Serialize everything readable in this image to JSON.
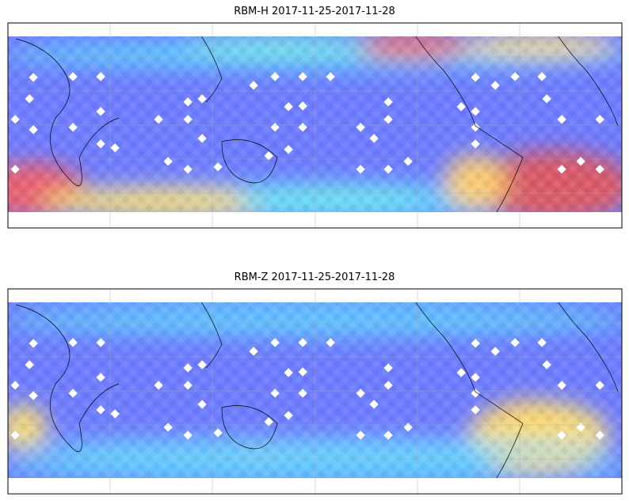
{
  "panels": [
    {
      "title": "RBM-H 2017-11-25-2017-11-28"
    },
    {
      "title": "RBM-Z 2017-11-25-2017-11-28"
    }
  ]
}
